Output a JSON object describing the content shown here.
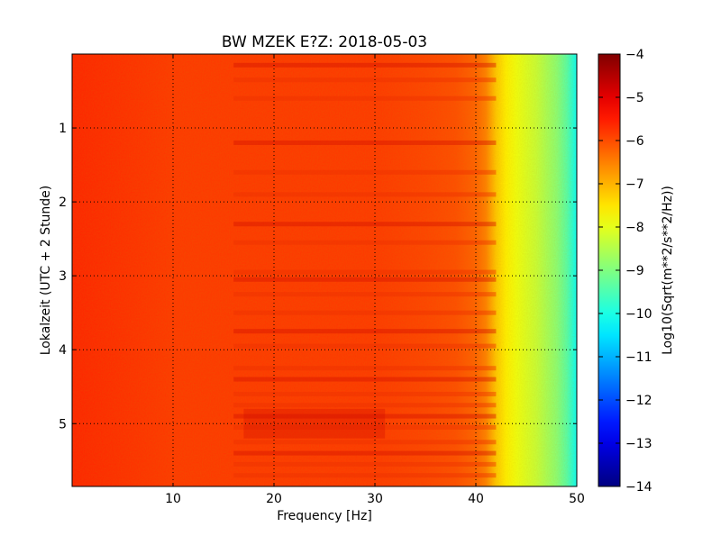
{
  "chart_data": {
    "type": "heatmap",
    "title": "BW MZEK E?Z: 2018-05-03",
    "xlabel": "Frequency [Hz]",
    "ylabel": "Lokalzeit (UTC + 2 Stunde)",
    "colorbar_label": "Log10(Sqrt(m**2/s**2/Hz))",
    "colormap": "jet",
    "xlim": [
      0,
      50
    ],
    "ylim": [
      5.85,
      0
    ],
    "y_inverted": true,
    "clim": [
      -14,
      -4
    ],
    "grid": true,
    "x_ticks": [
      10,
      20,
      30,
      40,
      50
    ],
    "y_ticks": [
      1,
      2,
      3,
      4,
      5
    ],
    "cbar_ticks": [
      -4,
      -5,
      -6,
      -7,
      -8,
      -9,
      -10,
      -11,
      -12,
      -13,
      -14
    ],
    "spectrum_profile": {
      "frequency_hz": [
        0,
        5,
        10,
        15,
        20,
        25,
        30,
        35,
        38,
        40,
        41,
        42,
        43,
        44,
        45,
        46,
        47,
        48,
        49,
        50
      ],
      "log10_amplitude": [
        -5.6,
        -5.7,
        -5.8,
        -5.8,
        -5.8,
        -5.8,
        -5.8,
        -5.9,
        -6.0,
        -6.2,
        -6.5,
        -7.2,
        -7.6,
        -7.9,
        -8.1,
        -8.3,
        -8.6,
        -8.9,
        -9.4,
        -10.2
      ]
    },
    "horizontal_bands_hours": [
      0.15,
      0.35,
      0.6,
      1.2,
      1.6,
      1.9,
      2.3,
      2.55,
      2.95,
      3.05,
      3.25,
      3.5,
      3.75,
      3.95,
      4.25,
      4.4,
      4.6,
      4.75,
      4.9,
      5.05,
      5.25,
      5.4,
      5.55,
      5.7
    ]
  }
}
